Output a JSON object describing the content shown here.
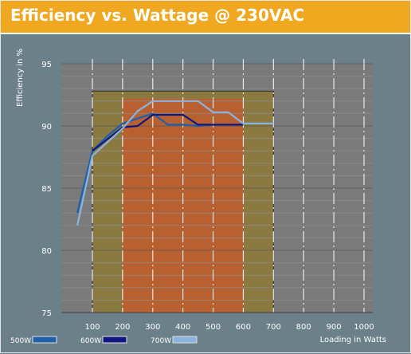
{
  "title": "Efficiency vs. Wattage @ 230VAC",
  "chart_data": {
    "type": "line",
    "title": "Efficiency vs. Wattage @ 230VAC",
    "xlabel": "Loading in Watts",
    "ylabel": "Efficiency in %",
    "xlim": [
      0,
      1000
    ],
    "ylim": [
      75,
      95
    ],
    "x_ticks": [
      100,
      200,
      300,
      400,
      500,
      600,
      700,
      800,
      900,
      1000
    ],
    "y_ticks": [
      75,
      80,
      85,
      90,
      95
    ],
    "bands": [
      {
        "x_from": 100,
        "x_to": 700,
        "y_top": 92.8,
        "color": "#8a7a40"
      },
      {
        "x_from": 200,
        "x_to": 600,
        "y_top": 92.2,
        "color": "#b86030"
      }
    ],
    "series": [
      {
        "name": "500W",
        "color": "#2060a8",
        "x": [
          50,
          100,
          150,
          200,
          250,
          300,
          350,
          400,
          450,
          500
        ],
        "y": [
          83.0,
          88.0,
          89.2,
          90.2,
          90.6,
          91.0,
          90.1,
          90.1,
          90.0,
          90.1
        ]
      },
      {
        "name": "600W",
        "color": "#101880",
        "x": [
          100,
          200,
          250,
          300,
          350,
          400,
          450,
          500,
          600
        ],
        "y": [
          88.0,
          89.9,
          90.0,
          90.9,
          90.9,
          90.9,
          90.1,
          90.1,
          90.1
        ]
      },
      {
        "name": "700W",
        "color": "#8ab4e0",
        "x": [
          50,
          100,
          200,
          250,
          300,
          350,
          400,
          450,
          500,
          550,
          600,
          700
        ],
        "y": [
          82.0,
          87.6,
          89.8,
          91.2,
          92.0,
          92.0,
          92.0,
          92.0,
          91.1,
          91.1,
          90.2,
          90.2
        ]
      }
    ]
  }
}
